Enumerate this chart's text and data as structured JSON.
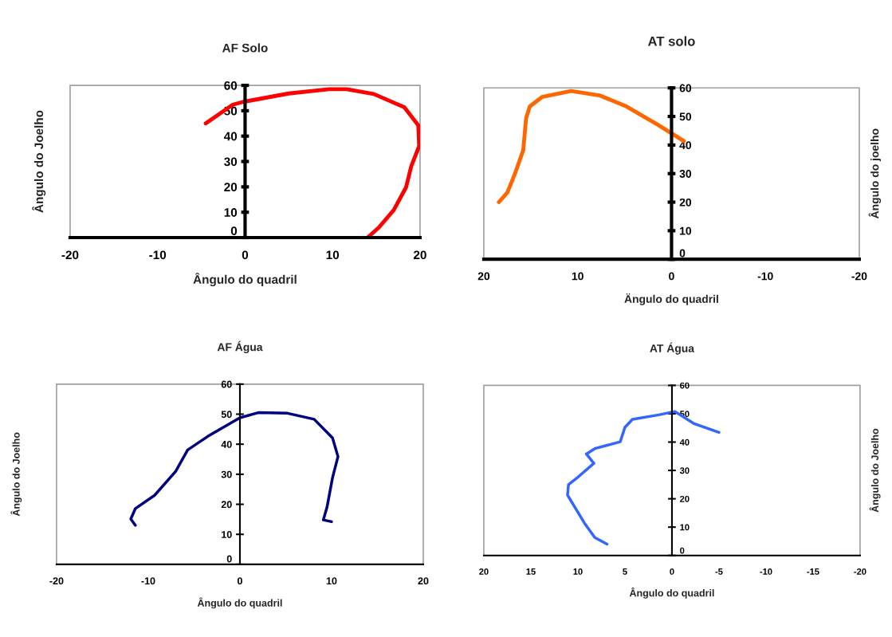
{
  "chart_data": [
    {
      "type": "line",
      "title": "AF Solo",
      "xlabel": "Ângulo do quadril",
      "ylabel": "Ângulo do Joelho",
      "xlim": [
        -20,
        20
      ],
      "xticks": [
        -20,
        -10,
        0,
        10,
        20
      ],
      "ylim": [
        0,
        60
      ],
      "yticks": [
        0,
        10,
        20,
        30,
        40,
        50,
        60
      ],
      "series": [
        {
          "color": "#ff0000",
          "x": [
            -4.5,
            -1.4,
            -0.2,
            5.0,
            9.6,
            11.6,
            14.7,
            18.2,
            19.8,
            19.9,
            19.0,
            18.4,
            17.0,
            15.3,
            14.0
          ],
          "values": [
            45,
            52.4,
            53.5,
            56.8,
            58.5,
            58.5,
            56.6,
            51.4,
            44.2,
            36.1,
            28.2,
            19.8,
            10.9,
            4.0,
            0
          ]
        }
      ]
    },
    {
      "type": "line",
      "title": "AT solo",
      "xlabel": "Ängulo do quadril",
      "ylabel": "Ângulo do joelho",
      "xlim": [
        20,
        -20
      ],
      "xticks": [
        20,
        10,
        0,
        -10,
        -20
      ],
      "ylim": [
        0,
        60
      ],
      "yticks": [
        0,
        10,
        20,
        30,
        40,
        50,
        60
      ],
      "series": [
        {
          "color": "#ff6600",
          "x": [
            18.4,
            17.5,
            16.7,
            15.8,
            15.5,
            15.1,
            13.8,
            10.7,
            7.6,
            4.8,
            1.4,
            -1.3
          ],
          "values": [
            20.0,
            23.3,
            29.8,
            38.2,
            49.3,
            53.5,
            56.8,
            58.9,
            57.3,
            53.5,
            47.0,
            41.4
          ]
        }
      ]
    },
    {
      "type": "line",
      "title": "AF Água",
      "xlabel": "Ângulo do quadril",
      "ylabel": "Ângulo do Joelho",
      "xlim": [
        -20,
        20
      ],
      "xticks": [
        -20,
        -10,
        0,
        10,
        20
      ],
      "ylim": [
        0,
        60
      ],
      "yticks": [
        0,
        10,
        20,
        30,
        40,
        50,
        60
      ],
      "series": [
        {
          "color": "#000080",
          "x": [
            -11.4,
            -11.9,
            -11.4,
            -9.3,
            -7.0,
            -5.7,
            -3.5,
            0,
            2.0,
            5.2,
            8.1,
            10.1,
            10.7,
            10.1,
            9.5,
            9.1,
            10.0
          ],
          "values": [
            13.0,
            15.1,
            18.6,
            23.0,
            31.0,
            38.1,
            42.6,
            48.8,
            50.5,
            50.3,
            48.3,
            42.1,
            35.9,
            28.8,
            19.0,
            14.8,
            14.2
          ]
        }
      ]
    },
    {
      "type": "line",
      "title": "AT Água",
      "xlabel": "Ângulo do quadril",
      "ylabel": "Ângulo do Joelho",
      "xlim": [
        20,
        -20
      ],
      "xticks": [
        20,
        15,
        10,
        5,
        0,
        -5,
        -10,
        -15,
        -20
      ],
      "ylim": [
        0,
        60
      ],
      "yticks": [
        0,
        10,
        20,
        30,
        40,
        50,
        60
      ],
      "series": [
        {
          "color": "#3366ff",
          "x": [
            6.9,
            8.2,
            9.3,
            11.1,
            11.0,
            9.9,
            8.3,
            9.1,
            8.2,
            5.5,
            5.0,
            4.2,
            1.4,
            -0.3,
            -2.3,
            -5.0
          ],
          "values": [
            4.0,
            6.3,
            11.4,
            21.3,
            25.0,
            27.9,
            32.5,
            35.8,
            37.7,
            40.1,
            45.2,
            48.0,
            49.6,
            50.8,
            46.6,
            43.4
          ]
        }
      ]
    }
  ]
}
